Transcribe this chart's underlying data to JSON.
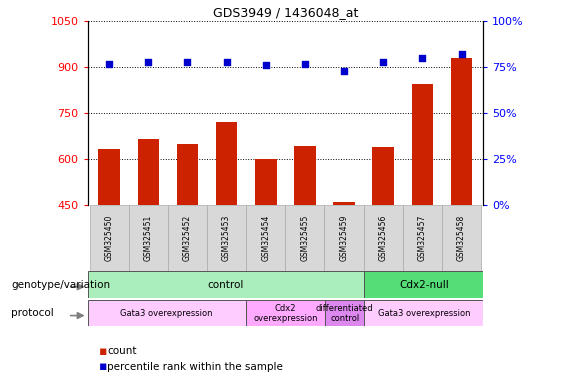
{
  "title": "GDS3949 / 1436048_at",
  "samples": [
    "GSM325450",
    "GSM325451",
    "GSM325452",
    "GSM325453",
    "GSM325454",
    "GSM325455",
    "GSM325459",
    "GSM325456",
    "GSM325457",
    "GSM325458"
  ],
  "counts": [
    635,
    665,
    650,
    720,
    600,
    645,
    460,
    640,
    845,
    930
  ],
  "percentiles": [
    77,
    78,
    78,
    78,
    76,
    77,
    73,
    78,
    80,
    82
  ],
  "ylim_left": [
    450,
    1050
  ],
  "ylim_right": [
    0,
    100
  ],
  "yticks_left": [
    450,
    600,
    750,
    900,
    1050
  ],
  "yticks_right": [
    0,
    25,
    50,
    75,
    100
  ],
  "bar_color": "#cc2200",
  "dot_color": "#0000cc",
  "background_color": "#ffffff",
  "genotype_groups": [
    {
      "label": "control",
      "start": 0,
      "end": 7,
      "color": "#aaeebb"
    },
    {
      "label": "Cdx2-null",
      "start": 7,
      "end": 10,
      "color": "#55dd77"
    }
  ],
  "protocol_groups": [
    {
      "label": "Gata3 overexpression",
      "start": 0,
      "end": 4,
      "color": "#ffccff"
    },
    {
      "label": "Cdx2\noverexpression",
      "start": 4,
      "end": 6,
      "color": "#ffaaff"
    },
    {
      "label": "differentiated\ncontrol",
      "start": 6,
      "end": 7,
      "color": "#dd88ee"
    },
    {
      "label": "Gata3 overexpression",
      "start": 7,
      "end": 10,
      "color": "#ffccff"
    }
  ],
  "label_genotype": "genotype/variation",
  "label_protocol": "protocol",
  "legend_count_color": "#cc2200",
  "legend_pct_color": "#0000cc"
}
